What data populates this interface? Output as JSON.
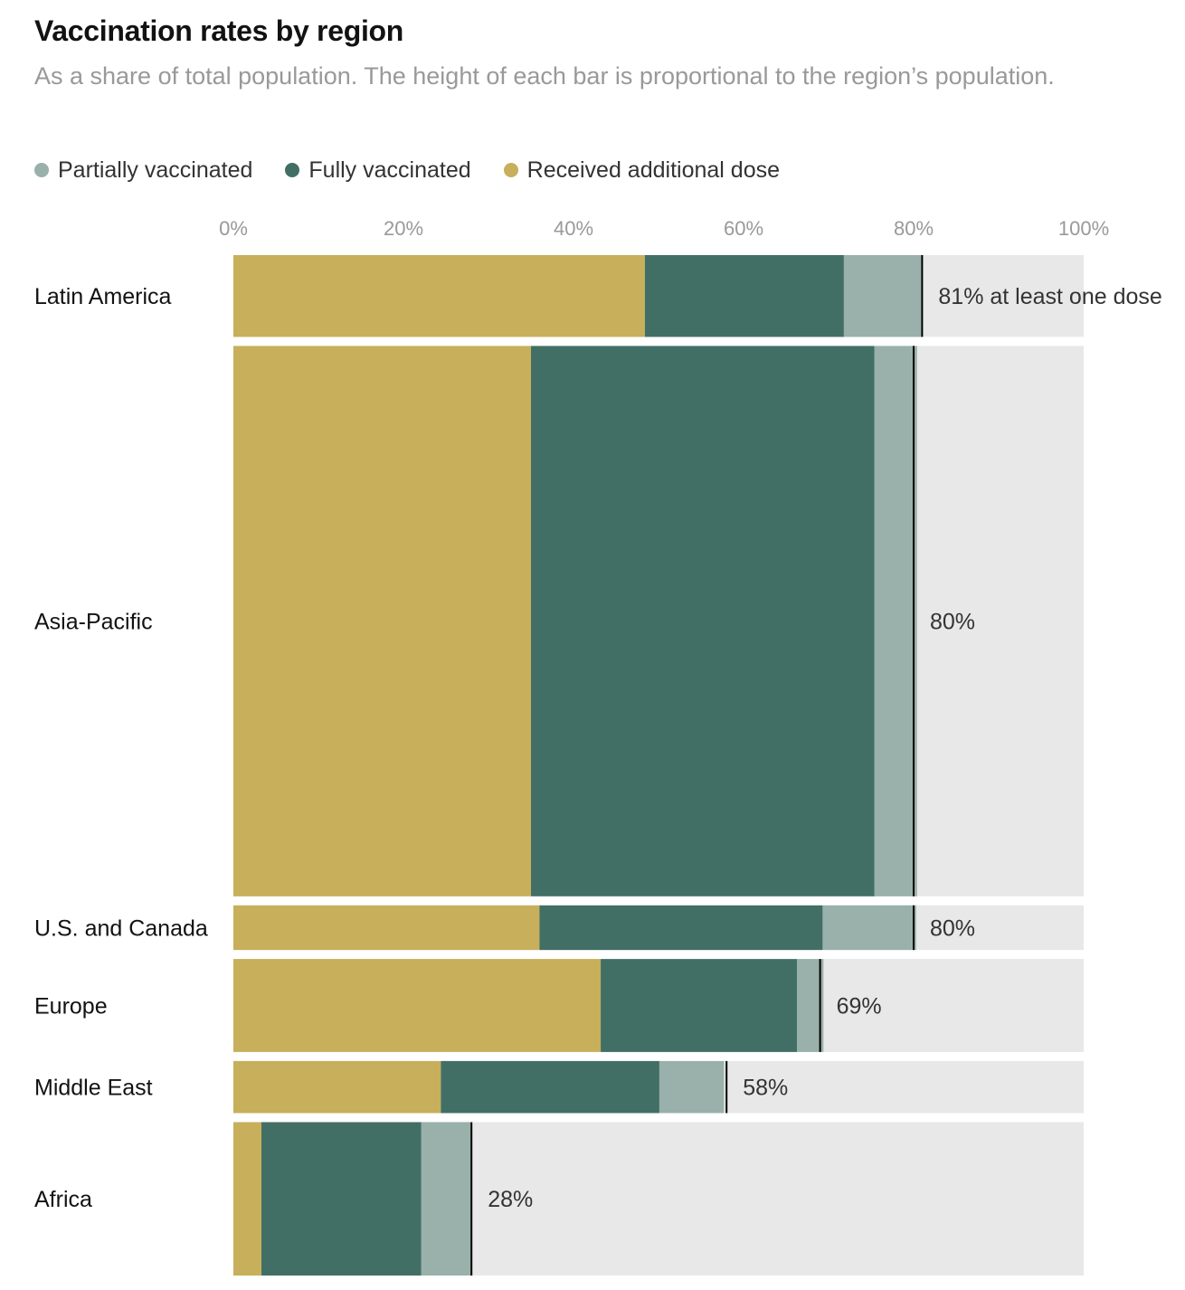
{
  "title": "Vaccination rates by region",
  "subtitle": "As a share of total population. The height of each bar is proportional to the region’s population.",
  "colors": {
    "partial": "#99b1aa",
    "full": "#426f65",
    "additional": "#c7af5b",
    "track": "#e8e8e8",
    "marker": "#000000"
  },
  "legend": [
    {
      "label": "Partially vaccinated",
      "color": "#99b1aa"
    },
    {
      "label": "Fully vaccinated",
      "color": "#426f65"
    },
    {
      "label": "Received additional dose",
      "color": "#c7af5b"
    }
  ],
  "chart_data": {
    "type": "bar",
    "orientation": "horizontal",
    "stacked": true,
    "title": "Vaccination rates by region",
    "subtitle": "As a share of total population. The height of each bar is proportional to the region’s population.",
    "xlim": [
      0,
      100
    ],
    "x_ticks": [
      "0%",
      "20%",
      "40%",
      "60%",
      "80%",
      "100%"
    ],
    "x_tick_values": [
      0,
      20,
      40,
      60,
      80,
      100
    ],
    "legend_position": "top-left",
    "grid": false,
    "series": [
      {
        "name": "Received additional dose",
        "key": "additional"
      },
      {
        "name": "Fully vaccinated",
        "key": "full"
      },
      {
        "name": "Partially vaccinated",
        "key": "partial"
      }
    ],
    "regions": [
      {
        "name": "Latin America",
        "additional": 48.4,
        "full": 23.4,
        "partial": 9.2,
        "at_least_one": 81,
        "label": "81% at least one dose",
        "population_share": 0.088
      },
      {
        "name": "Asia-Pacific",
        "additional": 35.0,
        "full": 40.4,
        "partial": 5.0,
        "at_least_one": 80,
        "label": "80%",
        "population_share": 0.592
      },
      {
        "name": "U.S. and Canada",
        "additional": 36.0,
        "full": 33.3,
        "partial": 11.0,
        "at_least_one": 80,
        "label": "80%",
        "population_share": 0.048
      },
      {
        "name": "Europe",
        "additional": 43.2,
        "full": 23.1,
        "partial": 3.1,
        "at_least_one": 69,
        "label": "69%",
        "population_share": 0.1
      },
      {
        "name": "Middle East",
        "additional": 24.4,
        "full": 25.7,
        "partial": 7.6,
        "at_least_one": 58,
        "label": "58%",
        "population_share": 0.056
      },
      {
        "name": "Africa",
        "additional": 3.3,
        "full": 18.8,
        "partial": 5.9,
        "at_least_one": 28,
        "label": "28%",
        "population_share": 0.165
      }
    ]
  }
}
